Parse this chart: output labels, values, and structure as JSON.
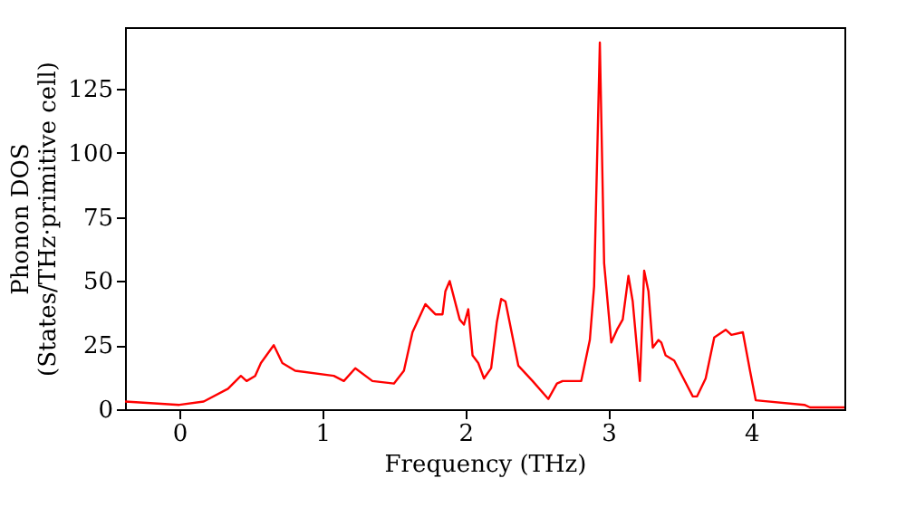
{
  "chart_data": {
    "type": "line",
    "xlabel": "Frequency (THz)",
    "ylabel": "Phonon DOS\n(States/THz·primitive cell)",
    "x": [
      -0.38,
      0,
      0.17,
      0.34,
      0.43,
      0.47,
      0.53,
      0.57,
      0.66,
      0.72,
      0.81,
      1.08,
      1.15,
      1.23,
      1.35,
      1.5,
      1.57,
      1.63,
      1.72,
      1.79,
      1.84,
      1.86,
      1.89,
      1.96,
      1.99,
      2.02,
      2.05,
      2.09,
      2.13,
      2.18,
      2.22,
      2.25,
      2.28,
      2.37,
      2.47,
      2.58,
      2.64,
      2.68,
      2.81,
      2.87,
      2.9,
      2.94,
      2.97,
      3.02,
      3.06,
      3.1,
      3.14,
      3.17,
      3.22,
      3.25,
      3.28,
      3.31,
      3.35,
      3.37,
      3.4,
      3.46,
      3.59,
      3.62,
      3.68,
      3.74,
      3.82,
      3.86,
      3.94,
      3.99,
      4.03,
      4.37,
      4.41,
      4.65
    ],
    "series": [
      {
        "color": "#ff0000",
        "values": [
          3,
          1.7,
          3,
          8,
          13,
          11,
          13,
          18,
          25,
          18,
          15,
          13,
          11,
          16,
          11,
          10,
          15,
          30,
          41,
          37,
          37,
          46,
          50,
          35,
          33,
          39,
          21,
          18,
          12,
          16,
          34,
          43,
          42,
          17,
          11,
          4,
          10,
          11,
          11,
          27,
          48,
          143,
          57,
          26,
          31,
          35,
          52,
          42,
          11,
          54,
          46,
          24,
          27,
          26,
          21,
          19,
          5,
          5,
          12,
          28,
          31,
          29,
          30,
          15,
          3.5,
          1.7,
          0.7,
          0.7
        ]
      }
    ],
    "xlim": [
      -0.38,
      4.65
    ],
    "ylim": [
      0,
      149
    ],
    "xticks": [
      0,
      1,
      2,
      3,
      4
    ],
    "yticks": [
      0,
      25,
      50,
      75,
      100,
      125
    ],
    "grid": false,
    "legend": false,
    "line_style": "solid",
    "marker": "none"
  }
}
